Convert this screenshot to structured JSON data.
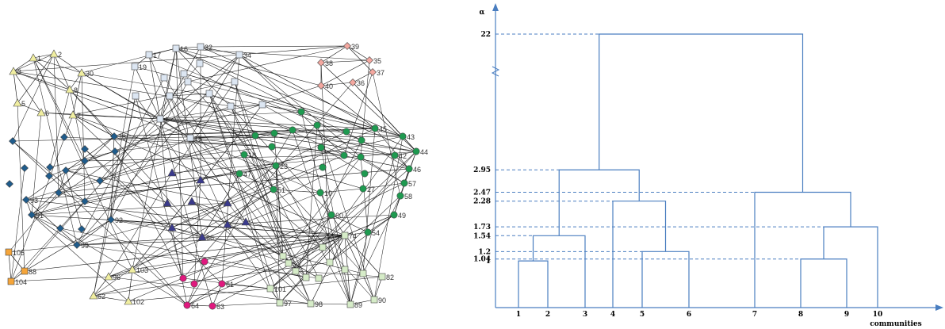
{
  "network": {
    "nodes": [
      {
        "id": "1",
        "label": "1",
        "shape": "triangle",
        "color": "#f0eea0"
      },
      {
        "id": "2",
        "label": "2",
        "shape": "triangle",
        "color": "#f0eea0"
      },
      {
        "id": "3",
        "label": "3",
        "shape": "triangle",
        "color": "#f0eea0"
      },
      {
        "id": "5",
        "label": "5",
        "shape": "triangle",
        "color": "#f0eea0"
      },
      {
        "id": "6",
        "label": "6",
        "shape": "triangle",
        "color": "#f0eea0"
      },
      {
        "id": "7",
        "label": "7",
        "shape": "triangle",
        "color": "#f0eea0"
      },
      {
        "id": "8",
        "label": "8",
        "shape": "triangle",
        "color": "#f0eea0"
      },
      {
        "id": "30",
        "label": "30",
        "shape": "triangle",
        "color": "#f0eea0"
      },
      {
        "id": "17",
        "label": "17",
        "shape": "square",
        "color": "#dce6f2"
      },
      {
        "id": "19",
        "label": "19",
        "shape": "square",
        "color": "#dce6f2"
      },
      {
        "id": "16",
        "label": "16",
        "shape": "square",
        "color": "#dce6f2"
      },
      {
        "id": "32",
        "label": "32",
        "shape": "square",
        "color": "#dce6f2"
      },
      {
        "id": "34",
        "label": "34",
        "shape": "square",
        "color": "#dce6f2"
      },
      {
        "id": "4",
        "label": "4",
        "shape": "square",
        "color": "#dce6f2"
      },
      {
        "id": "15",
        "label": "15",
        "shape": "square",
        "color": "#dce6f2"
      },
      {
        "id": "39",
        "label": "39",
        "shape": "diamond",
        "color": "#f4a8a0"
      },
      {
        "id": "35",
        "label": "35",
        "shape": "diamond",
        "color": "#f4a8a0"
      },
      {
        "id": "37",
        "label": "37",
        "shape": "diamond",
        "color": "#f4a8a0"
      },
      {
        "id": "38",
        "label": "38",
        "shape": "diamond",
        "color": "#f4a8a0"
      },
      {
        "id": "36",
        "label": "36",
        "shape": "diamond",
        "color": "#f4a8a0"
      },
      {
        "id": "40",
        "label": "40",
        "shape": "diamond",
        "color": "#f4a8a0"
      },
      {
        "id": "45",
        "label": "45",
        "shape": "circle",
        "color": "#1e9a50"
      },
      {
        "id": "43",
        "label": "43",
        "shape": "circle",
        "color": "#1e9a50"
      },
      {
        "id": "44",
        "label": "44",
        "shape": "circle",
        "color": "#1e9a50"
      },
      {
        "id": "42",
        "label": "42",
        "shape": "circle",
        "color": "#1e9a50"
      },
      {
        "id": "46",
        "label": "46",
        "shape": "circle",
        "color": "#1e9a50"
      },
      {
        "id": "57",
        "label": "57",
        "shape": "circle",
        "color": "#1e9a50"
      },
      {
        "id": "58",
        "label": "58",
        "shape": "circle",
        "color": "#1e9a50"
      },
      {
        "id": "49",
        "label": "49",
        "shape": "circle",
        "color": "#1e9a50"
      },
      {
        "id": "54",
        "label": "54",
        "shape": "circle",
        "color": "#1e9a50"
      },
      {
        "id": "60",
        "label": "60",
        "shape": "circle",
        "color": "#1e9a50"
      },
      {
        "id": "10",
        "label": "10",
        "shape": "circle",
        "color": "#1e9a50"
      },
      {
        "id": "47",
        "label": "47",
        "shape": "circle",
        "color": "#1e9a50"
      },
      {
        "id": "51",
        "label": "51",
        "shape": "circle",
        "color": "#1e9a50"
      },
      {
        "id": "23",
        "label": "23",
        "shape": "circle",
        "color": "#1e9a50"
      },
      {
        "id": "18",
        "label": "18",
        "shape": "circle",
        "color": "#1e9a50"
      },
      {
        "id": "27",
        "label": "27",
        "shape": "circle",
        "color": "#1e9a50"
      },
      {
        "id": "78",
        "label": "78",
        "shape": "diamond",
        "color": "#1f5c8c"
      },
      {
        "id": "93",
        "label": "93",
        "shape": "diamond",
        "color": "#1f5c8c"
      },
      {
        "id": "91",
        "label": "91",
        "shape": "diamond",
        "color": "#1f5c8c"
      },
      {
        "id": "99",
        "label": "99",
        "shape": "diamond",
        "color": "#1f5c8c"
      },
      {
        "id": "92",
        "label": "92",
        "shape": "diamond",
        "color": "#1f5c8c"
      },
      {
        "id": "66",
        "label": "66",
        "shape": "triangle",
        "color": "#3a3a8c"
      },
      {
        "id": "74",
        "label": "74",
        "shape": "square",
        "color": "#d6ecc8"
      },
      {
        "id": "82",
        "label": "82",
        "shape": "square",
        "color": "#d6ecc8"
      },
      {
        "id": "90",
        "label": "90",
        "shape": "square",
        "color": "#d6ecc8"
      },
      {
        "id": "89",
        "label": "89",
        "shape": "square",
        "color": "#d6ecc8"
      },
      {
        "id": "98",
        "label": "98",
        "shape": "square",
        "color": "#d6ecc8"
      },
      {
        "id": "97",
        "label": "97",
        "shape": "square",
        "color": "#d6ecc8"
      },
      {
        "id": "101",
        "label": "101",
        "shape": "square",
        "color": "#d6ecc8"
      },
      {
        "id": "105",
        "label": "105",
        "shape": "square",
        "color": "#f5a53a"
      },
      {
        "id": "88",
        "label": "88",
        "shape": "square",
        "color": "#f5a53a"
      },
      {
        "id": "104",
        "label": "104",
        "shape": "square",
        "color": "#f5a53a"
      },
      {
        "id": "96",
        "label": "96",
        "shape": "triangle",
        "color": "#f0eea0"
      },
      {
        "id": "103",
        "label": "103",
        "shape": "triangle",
        "color": "#f0eea0"
      },
      {
        "id": "62",
        "label": "62",
        "shape": "triangle",
        "color": "#f0eea0"
      },
      {
        "id": "102",
        "label": "102",
        "shape": "triangle",
        "color": "#f0eea0"
      },
      {
        "id": "64",
        "label": "64",
        "shape": "circle",
        "color": "#e0197e"
      },
      {
        "id": "63",
        "label": "63",
        "shape": "circle",
        "color": "#e0197e"
      },
      {
        "id": "61",
        "label": "61",
        "shape": "circle",
        "color": "#e0197e"
      }
    ],
    "edges": [
      [
        "1",
        "2"
      ],
      [
        "1",
        "3"
      ],
      [
        "1",
        "30"
      ],
      [
        "2",
        "30"
      ],
      [
        "2",
        "5"
      ],
      [
        "3",
        "5"
      ],
      [
        "3",
        "6"
      ],
      [
        "5",
        "6"
      ],
      [
        "6",
        "7"
      ],
      [
        "8",
        "30"
      ],
      [
        "1",
        "8"
      ],
      [
        "2",
        "8"
      ],
      [
        "7",
        "30"
      ],
      [
        "3",
        "4"
      ],
      [
        "7",
        "4"
      ],
      [
        "8",
        "4"
      ],
      [
        "30",
        "4"
      ],
      [
        "6",
        "4"
      ],
      [
        "17",
        "19"
      ],
      [
        "17",
        "16"
      ],
      [
        "16",
        "32"
      ],
      [
        "32",
        "34"
      ],
      [
        "19",
        "4"
      ],
      [
        "17",
        "4"
      ],
      [
        "16",
        "4"
      ],
      [
        "32",
        "4"
      ],
      [
        "34",
        "4"
      ],
      [
        "15",
        "4"
      ],
      [
        "34",
        "15"
      ],
      [
        "39",
        "35"
      ],
      [
        "39",
        "37"
      ],
      [
        "35",
        "38"
      ],
      [
        "37",
        "36"
      ],
      [
        "38",
        "40"
      ],
      [
        "36",
        "40"
      ],
      [
        "39",
        "38"
      ],
      [
        "35",
        "40"
      ],
      [
        "34",
        "39"
      ],
      [
        "32",
        "39"
      ],
      [
        "4",
        "45"
      ],
      [
        "4",
        "43"
      ],
      [
        "4",
        "44"
      ],
      [
        "4",
        "42"
      ],
      [
        "4",
        "46"
      ],
      [
        "15",
        "45"
      ],
      [
        "15",
        "43"
      ],
      [
        "34",
        "45"
      ],
      [
        "32",
        "43"
      ],
      [
        "16",
        "44"
      ],
      [
        "45",
        "43"
      ],
      [
        "43",
        "44"
      ],
      [
        "44",
        "42"
      ],
      [
        "42",
        "46"
      ],
      [
        "46",
        "57"
      ],
      [
        "57",
        "58"
      ],
      [
        "58",
        "49"
      ],
      [
        "49",
        "54"
      ],
      [
        "54",
        "60"
      ],
      [
        "60",
        "10"
      ],
      [
        "10",
        "51"
      ],
      [
        "51",
        "47"
      ],
      [
        "47",
        "23"
      ],
      [
        "23",
        "18"
      ],
      [
        "18",
        "27"
      ],
      [
        "27",
        "10"
      ],
      [
        "27",
        "57"
      ],
      [
        "40",
        "45"
      ],
      [
        "36",
        "43"
      ],
      [
        "38",
        "44"
      ],
      [
        "78",
        "93"
      ],
      [
        "93",
        "91"
      ],
      [
        "91",
        "99"
      ],
      [
        "99",
        "92"
      ],
      [
        "92",
        "78"
      ],
      [
        "78",
        "91"
      ],
      [
        "93",
        "99"
      ],
      [
        "78",
        "4"
      ],
      [
        "78",
        "7"
      ],
      [
        "78",
        "8"
      ],
      [
        "78",
        "45"
      ],
      [
        "78",
        "42"
      ],
      [
        "91",
        "43"
      ],
      [
        "93",
        "46"
      ],
      [
        "92",
        "74"
      ],
      [
        "99",
        "74"
      ],
      [
        "91",
        "74"
      ],
      [
        "93",
        "74"
      ],
      [
        "78",
        "74"
      ],
      [
        "92",
        "66"
      ],
      [
        "99",
        "66"
      ],
      [
        "66",
        "74"
      ],
      [
        "66",
        "47"
      ],
      [
        "66",
        "51"
      ],
      [
        "74",
        "82"
      ],
      [
        "74",
        "90"
      ],
      [
        "74",
        "89"
      ],
      [
        "74",
        "98"
      ],
      [
        "74",
        "97"
      ],
      [
        "74",
        "101"
      ],
      [
        "82",
        "90"
      ],
      [
        "90",
        "89"
      ],
      [
        "89",
        "98"
      ],
      [
        "98",
        "97"
      ],
      [
        "97",
        "101"
      ],
      [
        "101",
        "82"
      ],
      [
        "105",
        "88"
      ],
      [
        "88",
        "104"
      ],
      [
        "105",
        "104"
      ],
      [
        "105",
        "99"
      ],
      [
        "88",
        "74"
      ],
      [
        "88",
        "92"
      ],
      [
        "96",
        "103"
      ],
      [
        "96",
        "62"
      ],
      [
        "62",
        "102"
      ],
      [
        "103",
        "102"
      ],
      [
        "96",
        "74"
      ],
      [
        "103",
        "74"
      ],
      [
        "102",
        "101"
      ],
      [
        "64",
        "63"
      ],
      [
        "63",
        "61"
      ],
      [
        "61",
        "64"
      ],
      [
        "64",
        "74"
      ],
      [
        "61",
        "74"
      ],
      [
        "63",
        "97"
      ],
      [
        "61",
        "101"
      ],
      [
        "54",
        "74"
      ],
      [
        "60",
        "74"
      ],
      [
        "49",
        "74"
      ]
    ]
  },
  "dendrogram": {
    "axis_y_label": "α",
    "axis_x_label": "communities",
    "leaves": [
      "1",
      "2",
      "3",
      "4",
      "5",
      "6",
      "7",
      "8",
      "9",
      "10"
    ],
    "levels": [
      "22",
      "2.95",
      "2.47",
      "2.28",
      "1.73",
      "1.54",
      "1.2",
      "1.04",
      "1"
    ],
    "merges": [
      {
        "left": "1",
        "right": "2",
        "height": "1"
      },
      {
        "left": "5",
        "right": "6",
        "height": "1.2"
      },
      {
        "left": "8",
        "right": "9",
        "height": "1.04"
      },
      {
        "left": "1-2",
        "right": "3",
        "height": "1.54"
      },
      {
        "left": "8-9",
        "right": "10",
        "height": "1.73"
      },
      {
        "left": "4",
        "right": "5-6",
        "height": "2.28"
      },
      {
        "left": "7",
        "right": "8-10",
        "height": "2.47"
      },
      {
        "left": "1-3",
        "right": "4-6",
        "height": "2.95"
      },
      {
        "left": "1-6",
        "right": "7-10",
        "height": "22"
      }
    ]
  }
}
